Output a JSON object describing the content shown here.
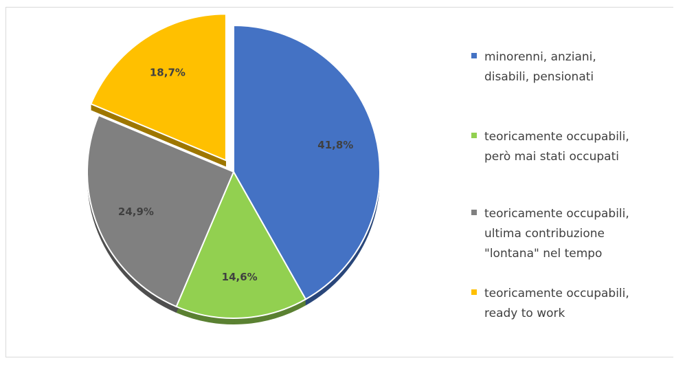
{
  "chart_data": {
    "type": "pie",
    "title": "",
    "slices": [
      {
        "label": "minorenni, anziani,\ndisabili, pensionati",
        "value": 41.8,
        "value_label": "41,8%",
        "color": "#4472C4",
        "exploded": false
      },
      {
        "label": "teoricamente occupabili,\nperò mai stati occupati",
        "value": 14.6,
        "value_label": "14,6%",
        "color": "#92D050",
        "exploded": false
      },
      {
        "label": "teoricamente occupabili,\nultima contribuzione\n\"lontana\" nel tempo",
        "value": 24.9,
        "value_label": "24,9%",
        "color": "#808080",
        "exploded": false
      },
      {
        "label": "teoricamente occupabili,\nready to work",
        "value": 18.7,
        "value_label": "18,7%",
        "color": "#FFC000",
        "exploded": true
      }
    ],
    "start_angle": "12 o'clock, clockwise",
    "legend_position": "right",
    "style": "3d"
  }
}
